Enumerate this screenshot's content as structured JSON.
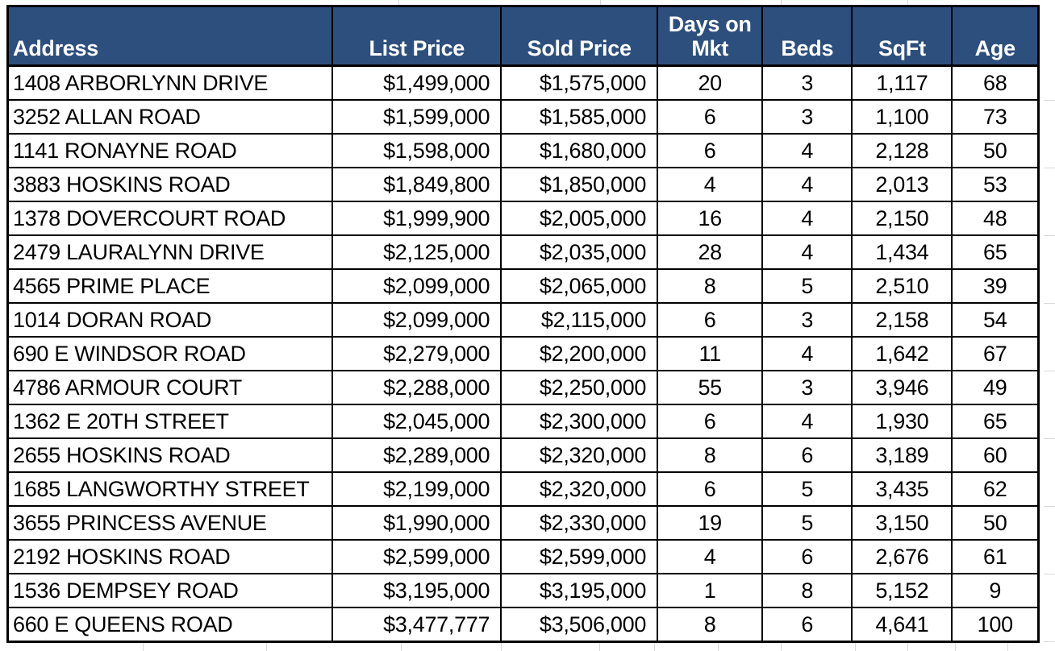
{
  "table": {
    "header_bg": "#2d4f7e",
    "header_text_color": "#ffffff",
    "border_color": "#000000",
    "gridline_color": "#d9d9d9",
    "columns": [
      {
        "key": "address",
        "label": "Address",
        "align": "left"
      },
      {
        "key": "list_price",
        "label": "List Price",
        "align": "right"
      },
      {
        "key": "sold_price",
        "label": "Sold Price",
        "align": "right"
      },
      {
        "key": "days_on_mkt",
        "label": "Days on Mkt",
        "align": "center"
      },
      {
        "key": "beds",
        "label": "Beds",
        "align": "center"
      },
      {
        "key": "sqft",
        "label": "SqFt",
        "align": "center"
      },
      {
        "key": "age",
        "label": "Age",
        "align": "center"
      }
    ],
    "rows": [
      [
        "1408 ARBORLYNN DRIVE",
        "$1,499,000",
        "$1,575,000",
        "20",
        "3",
        "1,117",
        "68"
      ],
      [
        "3252 ALLAN ROAD",
        "$1,599,000",
        "$1,585,000",
        "6",
        "3",
        "1,100",
        "73"
      ],
      [
        "1141 RONAYNE ROAD",
        "$1,598,000",
        "$1,680,000",
        "6",
        "4",
        "2,128",
        "50"
      ],
      [
        "3883 HOSKINS ROAD",
        "$1,849,800",
        "$1,850,000",
        "4",
        "4",
        "2,013",
        "53"
      ],
      [
        "1378 DOVERCOURT ROAD",
        "$1,999,900",
        "$2,005,000",
        "16",
        "4",
        "2,150",
        "48"
      ],
      [
        "2479 LAURALYNN DRIVE",
        "$2,125,000",
        "$2,035,000",
        "28",
        "4",
        "1,434",
        "65"
      ],
      [
        "4565 PRIME PLACE",
        "$2,099,000",
        "$2,065,000",
        "8",
        "5",
        "2,510",
        "39"
      ],
      [
        "1014 DORAN ROAD",
        "$2,099,000",
        "$2,115,000",
        "6",
        "3",
        "2,158",
        "54"
      ],
      [
        "690 E WINDSOR ROAD",
        "$2,279,000",
        "$2,200,000",
        "11",
        "4",
        "1,642",
        "67"
      ],
      [
        "4786 ARMOUR COURT",
        "$2,288,000",
        "$2,250,000",
        "55",
        "3",
        "3,946",
        "49"
      ],
      [
        "1362 E 20TH STREET",
        "$2,045,000",
        "$2,300,000",
        "6",
        "4",
        "1,930",
        "65"
      ],
      [
        "2655 HOSKINS ROAD",
        "$2,289,000",
        "$2,320,000",
        "8",
        "6",
        "3,189",
        "60"
      ],
      [
        "1685 LANGWORTHY STREET",
        "$2,199,000",
        "$2,320,000",
        "6",
        "5",
        "3,435",
        "62"
      ],
      [
        "3655 PRINCESS AVENUE",
        "$1,990,000",
        "$2,330,000",
        "19",
        "5",
        "3,150",
        "50"
      ],
      [
        "2192 HOSKINS ROAD",
        "$2,599,000",
        "$2,599,000",
        "4",
        "6",
        "2,676",
        "61"
      ],
      [
        "1536 DEMPSEY ROAD",
        "$3,195,000",
        "$3,195,000",
        "1",
        "8",
        "5,152",
        "9"
      ],
      [
        "660 E QUEENS ROAD",
        "$3,477,777",
        "$3,506,000",
        "8",
        "6",
        "4,641",
        "100"
      ]
    ]
  }
}
